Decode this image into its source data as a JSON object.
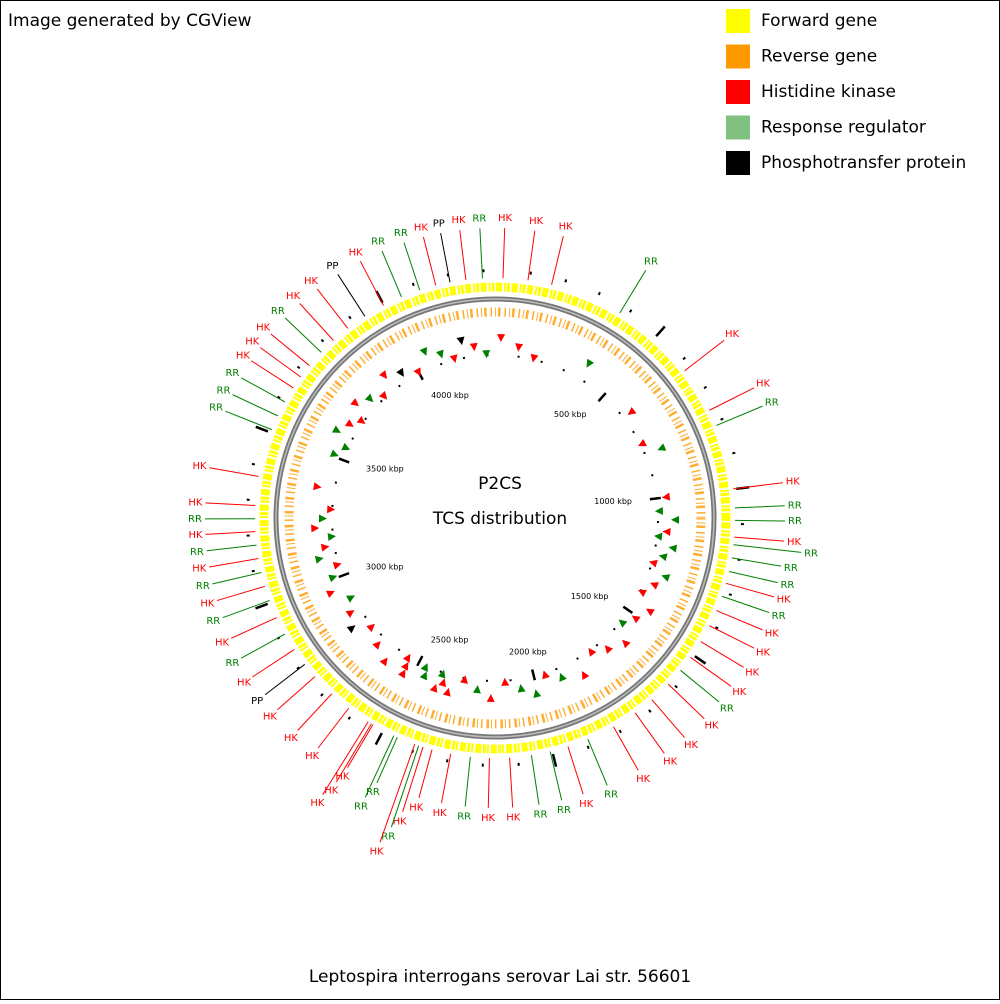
{
  "header": {
    "credit": "Image generated by CGView"
  },
  "legend": [
    {
      "label": "Forward gene",
      "color": "#ffff00"
    },
    {
      "label": "Reverse gene",
      "color": "#ff9900"
    },
    {
      "label": "Histidine kinase",
      "color": "#ff0000"
    },
    {
      "label": "Response regulator",
      "color": "#80c080"
    },
    {
      "label": "Phosphotransfer protein",
      "color": "#000000"
    }
  ],
  "map": {
    "title": "P2CS",
    "subtitle": "TCS distribution",
    "genome_length_kbp": 4332,
    "minor_tick_interval_kbp": 100,
    "colors": {
      "HK": "#ff0000",
      "RR": "#008000",
      "PP": "#000000"
    },
    "ticks": [
      {
        "value": 500,
        "label": "500 kbp"
      },
      {
        "value": 1000,
        "label": "1000 kbp"
      },
      {
        "value": 1500,
        "label": "1500 kbp"
      },
      {
        "value": 2000,
        "label": "2000 kbp"
      },
      {
        "value": 2500,
        "label": "2500 kbp"
      },
      {
        "value": 3000,
        "label": "3000 kbp"
      },
      {
        "value": 3500,
        "label": "3500 kbp"
      },
      {
        "value": 4000,
        "label": "4000 kbp"
      }
    ],
    "features": [
      {
        "label": "HK",
        "kbp": 23
      },
      {
        "label": "HK",
        "kbp": 95
      },
      {
        "label": "HK",
        "kbp": 164
      },
      {
        "label": "RR",
        "kbp": 377
      },
      {
        "label": "HK",
        "kbp": 628
      },
      {
        "label": "HK",
        "kbp": 762
      },
      {
        "label": "RR",
        "kbp": 810
      },
      {
        "label": "HK",
        "kbp": 999
      },
      {
        "label": "RR",
        "kbp": 1054
      },
      {
        "label": "RR",
        "kbp": 1090
      },
      {
        "label": "HK",
        "kbp": 1138
      },
      {
        "label": "RR",
        "kbp": 1160
      },
      {
        "label": "RR",
        "kbp": 1198
      },
      {
        "label": "RR",
        "kbp": 1238
      },
      {
        "label": "HK",
        "kbp": 1273
      },
      {
        "label": "RR",
        "kbp": 1312
      },
      {
        "label": "HK",
        "kbp": 1356
      },
      {
        "label": "HK",
        "kbp": 1404
      },
      {
        "label": "HK",
        "kbp": 1456
      },
      {
        "label": "HK",
        "kbp": 1510
      },
      {
        "label": "RR",
        "kbp": 1557
      },
      {
        "label": "HK",
        "kbp": 1610
      },
      {
        "label": "HK",
        "kbp": 1675
      },
      {
        "label": "HK",
        "kbp": 1736
      },
      {
        "label": "HK",
        "kbp": 1810
      },
      {
        "label": "RR",
        "kbp": 1892
      },
      {
        "label": "HK",
        "kbp": 1953
      },
      {
        "label": "RR",
        "kbp": 2006
      },
      {
        "label": "RR",
        "kbp": 2061
      },
      {
        "label": "HK",
        "kbp": 2124
      },
      {
        "label": "HK",
        "kbp": 2182
      },
      {
        "label": "RR",
        "kbp": 2237
      },
      {
        "label": "HK",
        "kbp": 2294
      },
      {
        "label": "HK",
        "kbp": 2349
      },
      {
        "label": "HK",
        "kbp": 2376
      },
      {
        "label": "RR",
        "kbp": 2389
      },
      {
        "label": "HK",
        "kbp": 2401
      },
      {
        "label": "RR",
        "kbp": 2455
      },
      {
        "label": "RR",
        "kbp": 2466
      },
      {
        "label": "HK",
        "kbp": 2534
      },
      {
        "label": "HK",
        "kbp": 2539
      },
      {
        "label": "HK",
        "kbp": 2550
      },
      {
        "label": "HK",
        "kbp": 2618
      },
      {
        "label": "HK",
        "kbp": 2682
      },
      {
        "label": "HK",
        "kbp": 2751
      },
      {
        "label": "PP",
        "kbp": 2797
      },
      {
        "label": "HK",
        "kbp": 2849
      },
      {
        "label": "RR",
        "kbp": 2901
      },
      {
        "label": "HK",
        "kbp": 2954
      },
      {
        "label": "RR",
        "kbp": 3007
      },
      {
        "label": "HK",
        "kbp": 3050
      },
      {
        "label": "RR",
        "kbp": 3091
      },
      {
        "label": "HK",
        "kbp": 3132
      },
      {
        "label": "RR",
        "kbp": 3171
      },
      {
        "label": "HK",
        "kbp": 3210
      },
      {
        "label": "RR",
        "kbp": 3247
      },
      {
        "label": "HK",
        "kbp": 3285
      },
      {
        "label": "HK",
        "kbp": 3369
      },
      {
        "label": "RR",
        "kbp": 3509
      },
      {
        "label": "RR",
        "kbp": 3552
      },
      {
        "label": "RR",
        "kbp": 3597
      },
      {
        "label": "HK",
        "kbp": 3644
      },
      {
        "label": "HK",
        "kbp": 3682
      },
      {
        "label": "HK",
        "kbp": 3723
      },
      {
        "label": "RR",
        "kbp": 3774
      },
      {
        "label": "HK",
        "kbp": 3823
      },
      {
        "label": "HK",
        "kbp": 3877
      },
      {
        "label": "PP",
        "kbp": 3937
      },
      {
        "label": "HK",
        "kbp": 3999
      },
      {
        "label": "RR",
        "kbp": 4056
      },
      {
        "label": "RR",
        "kbp": 4112
      },
      {
        "label": "HK",
        "kbp": 4160
      },
      {
        "label": "PP",
        "kbp": 4202
      },
      {
        "label": "HK",
        "kbp": 4248
      },
      {
        "label": "RR",
        "kbp": 4296
      }
    ]
  },
  "caption": "Leptospira interrogans serovar Lai str. 56601"
}
